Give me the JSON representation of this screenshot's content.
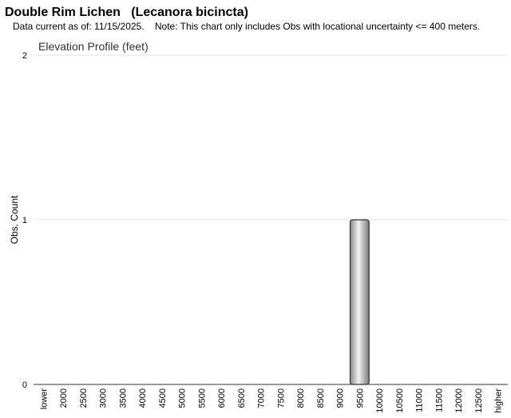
{
  "chart_data": {
    "type": "bar",
    "title": "Double Rim Lichen   (Lecanora bicincta)",
    "subtitle": "Data current as of: 11/15/2025.    Note: This chart only includes Obs with locational uncertainty <= 400 meters.",
    "chart_title": "Elevation Profile (feet)",
    "y_label": "Obs. Count",
    "categories": [
      "lower",
      "2000",
      "2500",
      "3000",
      "3500",
      "4000",
      "4500",
      "5000",
      "5500",
      "6000",
      "6500",
      "7000",
      "7500",
      "8000",
      "8500",
      "9000",
      "9500",
      "10000",
      "10500",
      "11000",
      "11500",
      "12000",
      "12500",
      "higher"
    ],
    "values": [
      0,
      0,
      0,
      0,
      0,
      0,
      0,
      0,
      0,
      0,
      0,
      0,
      0,
      0,
      0,
      0,
      1,
      0,
      0,
      0,
      0,
      0,
      0,
      0
    ],
    "color": "#999999",
    "ylim": [
      0,
      2
    ],
    "yticks": [
      0,
      1,
      2
    ],
    "grid": true
  }
}
